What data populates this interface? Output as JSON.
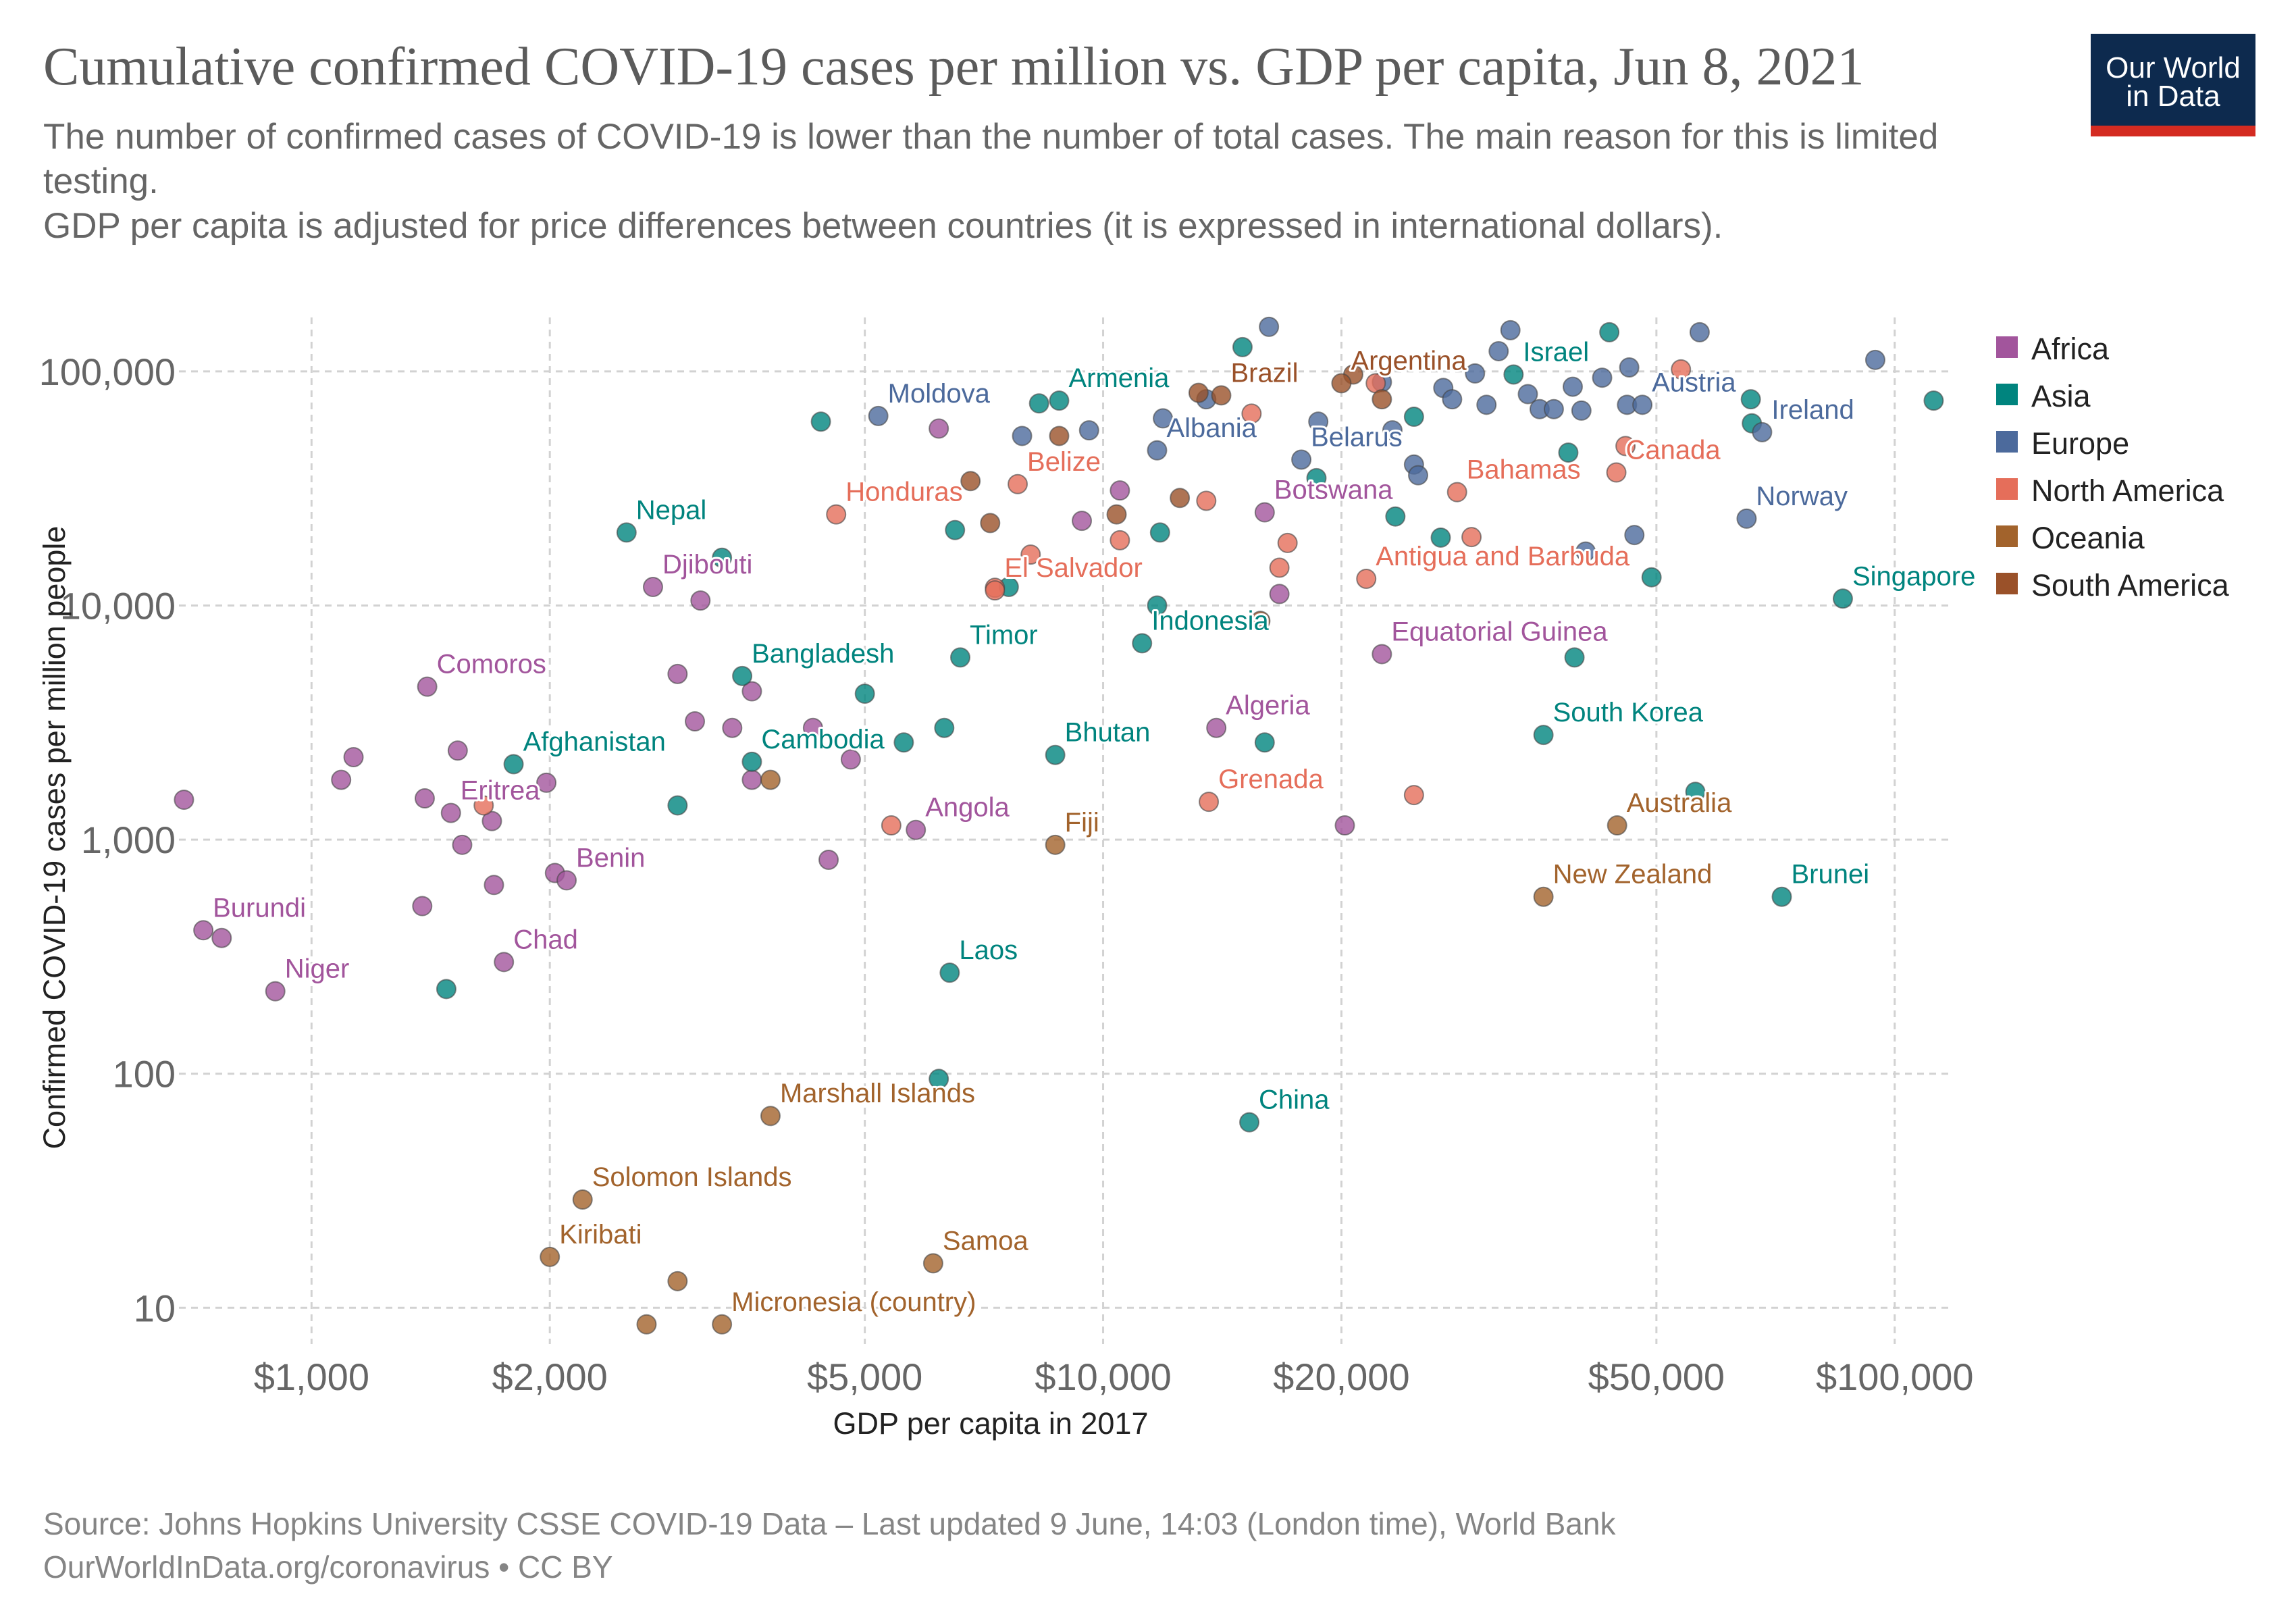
{
  "header": {
    "title": "Cumulative confirmed COVID-19 cases per million vs. GDP per capita, Jun 8, 2021",
    "subtitle_line1": "The number of confirmed cases of COVID-19 is lower than the number of total cases. The main reason for this is limited testing.",
    "subtitle_line2": " GDP per capita is adjusted for price differences between countries (it is expressed in international dollars)."
  },
  "logo": {
    "line1": "Our World",
    "line2": "in Data",
    "background": "#0d2a4e",
    "accent": "#d42b21"
  },
  "footer": {
    "source": "Source: Johns Hopkins University CSSE COVID-19 Data – Last updated 9 June, 14:03 (London time), World Bank",
    "credit": "OurWorldInData.org/coronavirus • CC BY"
  },
  "chart_data": {
    "type": "scatter",
    "title": "Cumulative confirmed COVID-19 cases per million vs. GDP per capita, Jun 8, 2021",
    "xlabel": "GDP per capita in 2017",
    "ylabel": "Confirmed COVID-19 cases per million people",
    "xscale": "log",
    "yscale": "log",
    "xlim": [
      680,
      118000
    ],
    "ylim": [
      7,
      170000
    ],
    "x_ticks": [
      {
        "value": 1000,
        "label": "$1,000"
      },
      {
        "value": 2000,
        "label": "$2,000"
      },
      {
        "value": 5000,
        "label": "$5,000"
      },
      {
        "value": 10000,
        "label": "$10,000"
      },
      {
        "value": 20000,
        "label": "$20,000"
      },
      {
        "value": 50000,
        "label": "$50,000"
      },
      {
        "value": 100000,
        "label": "$100,000"
      }
    ],
    "y_ticks": [
      {
        "value": 10,
        "label": "10"
      },
      {
        "value": 100,
        "label": "100"
      },
      {
        "value": 1000,
        "label": "1,000"
      },
      {
        "value": 10000,
        "label": "10,000"
      },
      {
        "value": 100000,
        "label": "100,000"
      }
    ],
    "grid": true,
    "legend_position": "right",
    "series": [
      {
        "name": "Africa",
        "color": "#a2559c"
      },
      {
        "name": "Asia",
        "color": "#00847e"
      },
      {
        "name": "Europe",
        "color": "#4c6a9c"
      },
      {
        "name": "North America",
        "color": "#e56e5a"
      },
      {
        "name": "Oceania",
        "color": "#a2632c"
      },
      {
        "name": "South America",
        "color": "#9a5129"
      }
    ],
    "points": [
      {
        "label": "Nepal",
        "region": "Asia",
        "x": 2500,
        "y": 20500
      },
      {
        "label": "Djibouti",
        "region": "Africa",
        "x": 2700,
        "y": 12000
      },
      {
        "label": "Moldova",
        "region": "Europe",
        "x": 5200,
        "y": 64500
      },
      {
        "label": "Armenia",
        "region": "Asia",
        "x": 8800,
        "y": 75000
      },
      {
        "label": "Brazil",
        "region": "South America",
        "x": 14100,
        "y": 79000
      },
      {
        "label": "Argentina",
        "region": "South America",
        "x": 20000,
        "y": 89000
      },
      {
        "label": "Israel",
        "region": "Asia",
        "x": 33000,
        "y": 97000
      },
      {
        "label": "Austria",
        "region": "Europe",
        "x": 48000,
        "y": 72000
      },
      {
        "label": "Ireland",
        "region": "Europe",
        "x": 68000,
        "y": 55000
      },
      {
        "label": "Albania",
        "region": "Europe",
        "x": 11700,
        "y": 46000
      },
      {
        "label": "Belarus",
        "region": "Europe",
        "x": 17800,
        "y": 42000
      },
      {
        "label": "Canada",
        "region": "North America",
        "x": 44500,
        "y": 37000
      },
      {
        "label": "Bahamas",
        "region": "North America",
        "x": 28000,
        "y": 30500
      },
      {
        "label": "Honduras",
        "region": "North America",
        "x": 4600,
        "y": 24500
      },
      {
        "label": "Belize",
        "region": "North America",
        "x": 7800,
        "y": 33000
      },
      {
        "label": "Botswana",
        "region": "Africa",
        "x": 16000,
        "y": 25000
      },
      {
        "label": "Norway",
        "region": "Europe",
        "x": 65000,
        "y": 23500
      },
      {
        "label": "El Salvador",
        "region": "North America",
        "x": 7300,
        "y": 11600
      },
      {
        "label": "Antigua and Barbuda",
        "region": "North America",
        "x": 21500,
        "y": 13000
      },
      {
        "label": "Singapore",
        "region": "Asia",
        "x": 86000,
        "y": 10700
      },
      {
        "label": "Indonesia",
        "region": "Asia",
        "x": 11200,
        "y": 6900
      },
      {
        "label": "Timor",
        "region": "Asia",
        "x": 6600,
        "y": 6000
      },
      {
        "label": "Bangladesh",
        "region": "Asia",
        "x": 3500,
        "y": 5000
      },
      {
        "label": "Comoros",
        "region": "Africa",
        "x": 1400,
        "y": 4500
      },
      {
        "label": "Equatorial Guinea",
        "region": "Africa",
        "x": 22500,
        "y": 6200
      },
      {
        "label": "Afghanistan",
        "region": "Asia",
        "x": 1800,
        "y": 2100
      },
      {
        "label": "Cambodia",
        "region": "Asia",
        "x": 3600,
        "y": 2150
      },
      {
        "label": "Bhutan",
        "region": "Asia",
        "x": 8700,
        "y": 2300
      },
      {
        "label": "Algeria",
        "region": "Africa",
        "x": 13900,
        "y": 3000
      },
      {
        "label": "South Korea",
        "region": "Asia",
        "x": 36000,
        "y": 2800
      },
      {
        "label": "Eritrea",
        "region": "Africa",
        "x": 1500,
        "y": 1300
      },
      {
        "label": "Grenada",
        "region": "North America",
        "x": 13600,
        "y": 1450
      },
      {
        "label": "Australia",
        "region": "Oceania",
        "x": 44600,
        "y": 1150
      },
      {
        "label": "Angola",
        "region": "Africa",
        "x": 5800,
        "y": 1100
      },
      {
        "label": "Fiji",
        "region": "Oceania",
        "x": 8700,
        "y": 950
      },
      {
        "label": "Benin",
        "region": "Africa",
        "x": 2100,
        "y": 670
      },
      {
        "label": "Burundi",
        "region": "Africa",
        "x": 730,
        "y": 410
      },
      {
        "label": "New Zealand",
        "region": "Oceania",
        "x": 36000,
        "y": 570
      },
      {
        "label": "Brunei",
        "region": "Asia",
        "x": 72000,
        "y": 570
      },
      {
        "label": "Chad",
        "region": "Africa",
        "x": 1750,
        "y": 300
      },
      {
        "label": "Niger",
        "region": "Africa",
        "x": 900,
        "y": 225
      },
      {
        "label": "Laos",
        "region": "Asia",
        "x": 6400,
        "y": 270
      },
      {
        "label": "Marshall Islands",
        "region": "Oceania",
        "x": 3800,
        "y": 66
      },
      {
        "label": "China",
        "region": "Asia",
        "x": 15300,
        "y": 62
      },
      {
        "label": "Solomon Islands",
        "region": "Oceania",
        "x": 2200,
        "y": 29
      },
      {
        "label": "Kiribati",
        "region": "Oceania",
        "x": 2000,
        "y": 16.5
      },
      {
        "label": "Samoa",
        "region": "Oceania",
        "x": 6100,
        "y": 15.5
      },
      {
        "label": "Micronesia (country)",
        "region": "Oceania",
        "x": 3300,
        "y": 8.5
      },
      {
        "label": "",
        "region": "Africa",
        "x": 690,
        "y": 1480
      },
      {
        "label": "",
        "region": "Africa",
        "x": 770,
        "y": 380
      },
      {
        "label": "",
        "region": "Africa",
        "x": 1090,
        "y": 1800
      },
      {
        "label": "",
        "region": "Africa",
        "x": 1130,
        "y": 2250
      },
      {
        "label": "",
        "region": "Africa",
        "x": 1390,
        "y": 1500
      },
      {
        "label": "",
        "region": "Africa",
        "x": 1530,
        "y": 2400
      },
      {
        "label": "",
        "region": "Africa",
        "x": 1550,
        "y": 950
      },
      {
        "label": "",
        "region": "Africa",
        "x": 1380,
        "y": 520
      },
      {
        "label": "",
        "region": "Africa",
        "x": 1700,
        "y": 640
      },
      {
        "label": "",
        "region": "Africa",
        "x": 1690,
        "y": 1200
      },
      {
        "label": "",
        "region": "Africa",
        "x": 1980,
        "y": 1750
      },
      {
        "label": "",
        "region": "Africa",
        "x": 2030,
        "y": 720
      },
      {
        "label": "",
        "region": "Africa",
        "x": 2900,
        "y": 5100
      },
      {
        "label": "",
        "region": "Africa",
        "x": 3050,
        "y": 3200
      },
      {
        "label": "",
        "region": "Africa",
        "x": 3400,
        "y": 3000
      },
      {
        "label": "",
        "region": "Africa",
        "x": 3600,
        "y": 4300
      },
      {
        "label": "",
        "region": "Africa",
        "x": 3600,
        "y": 1800
      },
      {
        "label": "",
        "region": "Africa",
        "x": 4300,
        "y": 3000
      },
      {
        "label": "",
        "region": "Africa",
        "x": 4500,
        "y": 820
      },
      {
        "label": "",
        "region": "Africa",
        "x": 4800,
        "y": 2200
      },
      {
        "label": "",
        "region": "Africa",
        "x": 3100,
        "y": 10500
      },
      {
        "label": "",
        "region": "Africa",
        "x": 6200,
        "y": 57000
      },
      {
        "label": "",
        "region": "Africa",
        "x": 9400,
        "y": 23000
      },
      {
        "label": "",
        "region": "Africa",
        "x": 10500,
        "y": 31000
      },
      {
        "label": "",
        "region": "Africa",
        "x": 20200,
        "y": 1150
      },
      {
        "label": "",
        "region": "Africa",
        "x": 16700,
        "y": 11200
      },
      {
        "label": "",
        "region": "Asia",
        "x": 1480,
        "y": 230
      },
      {
        "label": "",
        "region": "Asia",
        "x": 2900,
        "y": 1400
      },
      {
        "label": "",
        "region": "Asia",
        "x": 3300,
        "y": 16000
      },
      {
        "label": "",
        "region": "Asia",
        "x": 4400,
        "y": 61000
      },
      {
        "label": "",
        "region": "Asia",
        "x": 5000,
        "y": 4200
      },
      {
        "label": "",
        "region": "Asia",
        "x": 5600,
        "y": 2600
      },
      {
        "label": "",
        "region": "Asia",
        "x": 6300,
        "y": 3000
      },
      {
        "label": "",
        "region": "Asia",
        "x": 6500,
        "y": 21000
      },
      {
        "label": "",
        "region": "Asia",
        "x": 6200,
        "y": 95
      },
      {
        "label": "",
        "region": "Asia",
        "x": 7600,
        "y": 12000
      },
      {
        "label": "",
        "region": "Asia",
        "x": 8300,
        "y": 73000
      },
      {
        "label": "",
        "region": "Asia",
        "x": 11800,
        "y": 20500
      },
      {
        "label": "",
        "region": "Asia",
        "x": 11700,
        "y": 10000
      },
      {
        "label": "",
        "region": "Asia",
        "x": 15000,
        "y": 127000
      },
      {
        "label": "",
        "region": "Asia",
        "x": 16000,
        "y": 2600
      },
      {
        "label": "",
        "region": "Asia",
        "x": 18600,
        "y": 35000
      },
      {
        "label": "",
        "region": "Asia",
        "x": 23400,
        "y": 24000
      },
      {
        "label": "",
        "region": "Asia",
        "x": 24700,
        "y": 64000
      },
      {
        "label": "",
        "region": "Asia",
        "x": 26700,
        "y": 19500
      },
      {
        "label": "",
        "region": "Asia",
        "x": 38700,
        "y": 45000
      },
      {
        "label": "",
        "region": "Asia",
        "x": 39400,
        "y": 6000
      },
      {
        "label": "",
        "region": "Asia",
        "x": 43600,
        "y": 147000
      },
      {
        "label": "",
        "region": "Asia",
        "x": 49300,
        "y": 13200
      },
      {
        "label": "",
        "region": "Asia",
        "x": 56000,
        "y": 1600
      },
      {
        "label": "",
        "region": "Asia",
        "x": 66000,
        "y": 60000
      },
      {
        "label": "",
        "region": "Asia",
        "x": 65800,
        "y": 76000
      },
      {
        "label": "",
        "region": "Asia",
        "x": 112000,
        "y": 75000
      },
      {
        "label": "",
        "region": "Europe",
        "x": 7900,
        "y": 53000
      },
      {
        "label": "",
        "region": "Europe",
        "x": 9600,
        "y": 56000
      },
      {
        "label": "",
        "region": "Europe",
        "x": 11900,
        "y": 63000
      },
      {
        "label": "",
        "region": "Europe",
        "x": 13500,
        "y": 76000
      },
      {
        "label": "",
        "region": "Europe",
        "x": 16200,
        "y": 155000
      },
      {
        "label": "",
        "region": "Europe",
        "x": 18700,
        "y": 61000
      },
      {
        "label": "",
        "region": "Europe",
        "x": 22500,
        "y": 90000
      },
      {
        "label": "",
        "region": "Europe",
        "x": 23200,
        "y": 56000
      },
      {
        "label": "",
        "region": "Europe",
        "x": 24700,
        "y": 40000
      },
      {
        "label": "",
        "region": "Europe",
        "x": 25000,
        "y": 36000
      },
      {
        "label": "",
        "region": "Europe",
        "x": 26900,
        "y": 85000
      },
      {
        "label": "",
        "region": "Europe",
        "x": 27600,
        "y": 76000
      },
      {
        "label": "",
        "region": "Europe",
        "x": 29500,
        "y": 98000
      },
      {
        "label": "",
        "region": "Europe",
        "x": 30500,
        "y": 72000
      },
      {
        "label": "",
        "region": "Europe",
        "x": 31600,
        "y": 122000
      },
      {
        "label": "",
        "region": "Europe",
        "x": 32700,
        "y": 150000
      },
      {
        "label": "",
        "region": "Europe",
        "x": 34400,
        "y": 80000
      },
      {
        "label": "",
        "region": "Europe",
        "x": 35600,
        "y": 69000
      },
      {
        "label": "",
        "region": "Europe",
        "x": 37100,
        "y": 69000
      },
      {
        "label": "",
        "region": "Europe",
        "x": 39200,
        "y": 86000
      },
      {
        "label": "",
        "region": "Europe",
        "x": 40200,
        "y": 68000
      },
      {
        "label": "",
        "region": "Europe",
        "x": 40700,
        "y": 17000
      },
      {
        "label": "",
        "region": "Europe",
        "x": 42700,
        "y": 94000
      },
      {
        "label": "",
        "region": "Europe",
        "x": 45900,
        "y": 72000
      },
      {
        "label": "",
        "region": "Europe",
        "x": 46200,
        "y": 104000
      },
      {
        "label": "",
        "region": "Europe",
        "x": 46900,
        "y": 20000
      },
      {
        "label": "",
        "region": "Europe",
        "x": 56700,
        "y": 147000
      },
      {
        "label": "",
        "region": "Europe",
        "x": 94500,
        "y": 112000
      },
      {
        "label": "",
        "region": "North America",
        "x": 1650,
        "y": 1400
      },
      {
        "label": "",
        "region": "North America",
        "x": 5400,
        "y": 1150
      },
      {
        "label": "",
        "region": "North America",
        "x": 7300,
        "y": 11900
      },
      {
        "label": "",
        "region": "North America",
        "x": 8100,
        "y": 16500
      },
      {
        "label": "",
        "region": "North America",
        "x": 10500,
        "y": 19000
      },
      {
        "label": "",
        "region": "North America",
        "x": 13500,
        "y": 28000
      },
      {
        "label": "",
        "region": "North America",
        "x": 15400,
        "y": 66000
      },
      {
        "label": "",
        "region": "North America",
        "x": 16700,
        "y": 14500
      },
      {
        "label": "",
        "region": "North America",
        "x": 17100,
        "y": 18500
      },
      {
        "label": "",
        "region": "North America",
        "x": 22100,
        "y": 89000
      },
      {
        "label": "",
        "region": "North America",
        "x": 24700,
        "y": 1550
      },
      {
        "label": "",
        "region": "North America",
        "x": 29200,
        "y": 19600
      },
      {
        "label": "",
        "region": "North America",
        "x": 45700,
        "y": 48000
      },
      {
        "label": "",
        "region": "North America",
        "x": 53700,
        "y": 102000
      },
      {
        "label": "",
        "region": "Oceania",
        "x": 2900,
        "y": 13
      },
      {
        "label": "",
        "region": "Oceania",
        "x": 2650,
        "y": 8.5
      },
      {
        "label": "",
        "region": "Oceania",
        "x": 3800,
        "y": 1800
      },
      {
        "label": "",
        "region": "South America",
        "x": 6800,
        "y": 34000
      },
      {
        "label": "",
        "region": "South America",
        "x": 7200,
        "y": 22500
      },
      {
        "label": "",
        "region": "South America",
        "x": 8800,
        "y": 53000
      },
      {
        "label": "",
        "region": "South America",
        "x": 10400,
        "y": 24500
      },
      {
        "label": "",
        "region": "South America",
        "x": 12500,
        "y": 28800
      },
      {
        "label": "",
        "region": "South America",
        "x": 13200,
        "y": 81000
      },
      {
        "label": "",
        "region": "South America",
        "x": 15800,
        "y": 8600
      },
      {
        "label": "",
        "region": "South America",
        "x": 20700,
        "y": 97000
      },
      {
        "label": "",
        "region": "South America",
        "x": 22500,
        "y": 76000
      }
    ]
  }
}
